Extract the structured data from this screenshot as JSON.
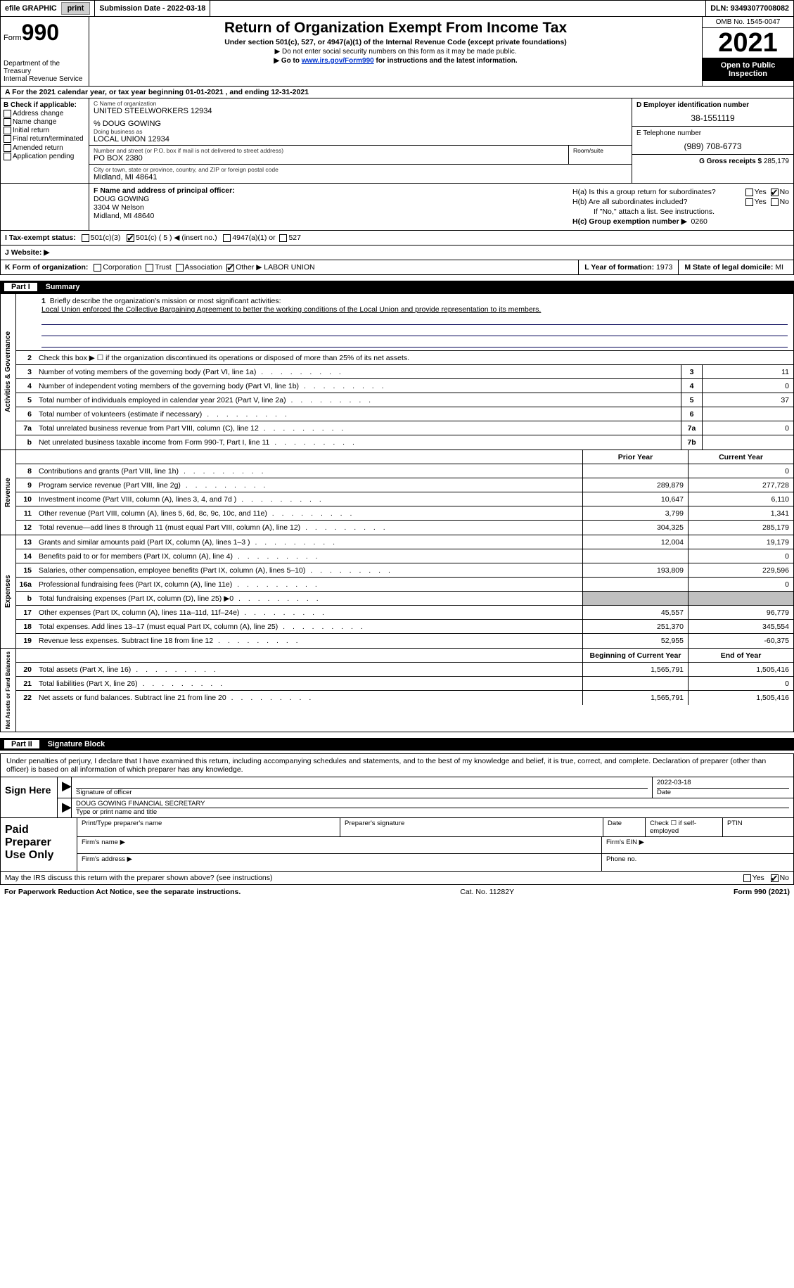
{
  "topbar": {
    "efile_label": "efile GRAPHIC",
    "print_btn": "print",
    "submission_label": "Submission Date - 2022-03-18",
    "dln_label": "DLN: 93493077008082"
  },
  "header": {
    "form_label": "Form",
    "form_number": "990",
    "dept": "Department of the Treasury",
    "irs": "Internal Revenue Service",
    "title": "Return of Organization Exempt From Income Tax",
    "sub1": "Under section 501(c), 527, or 4947(a)(1) of the Internal Revenue Code (except private foundations)",
    "sub2": "▶ Do not enter social security numbers on this form as it may be made public.",
    "sub3_prefix": "▶ Go to ",
    "sub3_link": "www.irs.gov/Form990",
    "sub3_suffix": " for instructions and the latest information.",
    "omb": "OMB No. 1545-0047",
    "year": "2021",
    "open": "Open to Public Inspection"
  },
  "row_a": "A  For the 2021 calendar year, or tax year beginning 01-01-2021    , and ending 12-31-2021",
  "col_b": {
    "title": "B Check if applicable:",
    "opts": [
      "Address change",
      "Name change",
      "Initial return",
      "Final return/terminated",
      "Amended return",
      "Application pending"
    ]
  },
  "col_c": {
    "name_lbl": "C Name of organization",
    "name_val": "UNITED STEELWORKERS 12934",
    "care_lbl": "% DOUG GOWING",
    "dba_lbl": "Doing business as",
    "dba_val": "LOCAL UNION 12934",
    "street_lbl": "Number and street (or P.O. box if mail is not delivered to street address)",
    "street_val": "PO BOX 2380",
    "room_lbl": "Room/suite",
    "city_lbl": "City or town, state or province, country, and ZIP or foreign postal code",
    "city_val": "Midland, MI  48641"
  },
  "col_d": {
    "ein_lbl": "D Employer identification number",
    "ein_val": "38-1551119",
    "tel_lbl": "E Telephone number",
    "tel_val": "(989) 708-6773",
    "gross_lbl": "G Gross receipts $",
    "gross_val": "285,179"
  },
  "fgh": {
    "f_lbl": "F Name and address of principal officer:",
    "f_name": "DOUG GOWING",
    "f_addr1": "3304 W Nelson",
    "f_addr2": "Midland, MI  48640",
    "ha_lbl": "H(a)  Is this a group return for subordinates?",
    "hb_lbl": "H(b)  Are all subordinates included?",
    "hb_note": "If \"No,\" attach a list. See instructions.",
    "hc_lbl": "H(c)  Group exemption number ▶",
    "hc_val": "0260",
    "yes": "Yes",
    "no": "No"
  },
  "row_i": {
    "lbl": "I   Tax-exempt status:",
    "opts": [
      "501(c)(3)",
      "501(c) ( 5 ) ◀ (insert no.)",
      "4947(a)(1) or",
      "527"
    ]
  },
  "row_j": {
    "lbl": "J   Website: ▶",
    "val": ""
  },
  "row_k": {
    "lbl": "K Form of organization:",
    "opts": [
      "Corporation",
      "Trust",
      "Association",
      "Other ▶"
    ],
    "other_val": "LABOR UNION",
    "l_lbl": "L Year of formation:",
    "l_val": "1973",
    "m_lbl": "M State of legal domicile:",
    "m_val": "MI"
  },
  "part1": {
    "num": "Part I",
    "title": "Summary"
  },
  "summary": {
    "q1_lbl": "Briefly describe the organization's mission or most significant activities:",
    "q1_val": "Local Union enforced the Collective Bargaining Agreement to better the working conditions of the Local Union and provide representation to its members.",
    "q2": "Check this box ▶ ☐  if the organization discontinued its operations or disposed of more than 25% of its net assets.",
    "lines": [
      {
        "n": "3",
        "d": "Number of voting members of the governing body (Part VI, line 1a)",
        "bn": "3",
        "bv": "11"
      },
      {
        "n": "4",
        "d": "Number of independent voting members of the governing body (Part VI, line 1b)",
        "bn": "4",
        "bv": "0"
      },
      {
        "n": "5",
        "d": "Total number of individuals employed in calendar year 2021 (Part V, line 2a)",
        "bn": "5",
        "bv": "37"
      },
      {
        "n": "6",
        "d": "Total number of volunteers (estimate if necessary)",
        "bn": "6",
        "bv": ""
      },
      {
        "n": "7a",
        "d": "Total unrelated business revenue from Part VIII, column (C), line 12",
        "bn": "7a",
        "bv": "0"
      },
      {
        "n": "b",
        "d": "Net unrelated business taxable income from Form 990-T, Part I, line 11",
        "bn": "7b",
        "bv": ""
      }
    ],
    "prior_head": "Prior Year",
    "curr_head": "Current Year",
    "rev": [
      {
        "n": "8",
        "d": "Contributions and grants (Part VIII, line 1h)",
        "p": "",
        "c": "0"
      },
      {
        "n": "9",
        "d": "Program service revenue (Part VIII, line 2g)",
        "p": "289,879",
        "c": "277,728"
      },
      {
        "n": "10",
        "d": "Investment income (Part VIII, column (A), lines 3, 4, and 7d )",
        "p": "10,647",
        "c": "6,110"
      },
      {
        "n": "11",
        "d": "Other revenue (Part VIII, column (A), lines 5, 6d, 8c, 9c, 10c, and 11e)",
        "p": "3,799",
        "c": "1,341"
      },
      {
        "n": "12",
        "d": "Total revenue—add lines 8 through 11 (must equal Part VIII, column (A), line 12)",
        "p": "304,325",
        "c": "285,179"
      }
    ],
    "exp": [
      {
        "n": "13",
        "d": "Grants and similar amounts paid (Part IX, column (A), lines 1–3 )",
        "p": "12,004",
        "c": "19,179"
      },
      {
        "n": "14",
        "d": "Benefits paid to or for members (Part IX, column (A), line 4)",
        "p": "",
        "c": "0"
      },
      {
        "n": "15",
        "d": "Salaries, other compensation, employee benefits (Part IX, column (A), lines 5–10)",
        "p": "193,809",
        "c": "229,596"
      },
      {
        "n": "16a",
        "d": "Professional fundraising fees (Part IX, column (A), line 11e)",
        "p": "",
        "c": "0"
      },
      {
        "n": "b",
        "d": "Total fundraising expenses (Part IX, column (D), line 25) ▶0",
        "p": "SHADE",
        "c": "SHADE"
      },
      {
        "n": "17",
        "d": "Other expenses (Part IX, column (A), lines 11a–11d, 11f–24e)",
        "p": "45,557",
        "c": "96,779"
      },
      {
        "n": "18",
        "d": "Total expenses. Add lines 13–17 (must equal Part IX, column (A), line 25)",
        "p": "251,370",
        "c": "345,554"
      },
      {
        "n": "19",
        "d": "Revenue less expenses. Subtract line 18 from line 12",
        "p": "52,955",
        "c": "-60,375"
      }
    ],
    "na_head_p": "Beginning of Current Year",
    "na_head_c": "End of Year",
    "na": [
      {
        "n": "20",
        "d": "Total assets (Part X, line 16)",
        "p": "1,565,791",
        "c": "1,505,416"
      },
      {
        "n": "21",
        "d": "Total liabilities (Part X, line 26)",
        "p": "",
        "c": "0"
      },
      {
        "n": "22",
        "d": "Net assets or fund balances. Subtract line 21 from line 20",
        "p": "1,565,791",
        "c": "1,505,416"
      }
    ],
    "vlabels": {
      "gov": "Activities & Governance",
      "rev": "Revenue",
      "exp": "Expenses",
      "na": "Net Assets or Fund Balances"
    }
  },
  "part2": {
    "num": "Part II",
    "title": "Signature Block"
  },
  "sig": {
    "declaration": "Under penalties of perjury, I declare that I have examined this return, including accompanying schedules and statements, and to the best of my knowledge and belief, it is true, correct, and complete. Declaration of preparer (other than officer) is based on all information of which preparer has any knowledge.",
    "sign_here": "Sign Here",
    "sig_officer_lbl": "Signature of officer",
    "sig_date": "2022-03-18",
    "date_lbl": "Date",
    "name_title": "DOUG GOWING  FINANCIAL SECRETARY",
    "name_title_lbl": "Type or print name and title",
    "paid_lbl": "Paid Preparer Use Only",
    "prep_name_lbl": "Print/Type preparer's name",
    "prep_sig_lbl": "Preparer's signature",
    "prep_date_lbl": "Date",
    "self_emp_lbl": "Check ☐ if self-employed",
    "ptin_lbl": "PTIN",
    "firm_name_lbl": "Firm's name   ▶",
    "firm_ein_lbl": "Firm's EIN ▶",
    "firm_addr_lbl": "Firm's address ▶",
    "phone_lbl": "Phone no."
  },
  "footer": {
    "discuss": "May the IRS discuss this return with the preparer shown above? (see instructions)",
    "yes": "Yes",
    "no": "No",
    "pra": "For Paperwork Reduction Act Notice, see the separate instructions.",
    "cat": "Cat. No. 11282Y",
    "form": "Form 990 (2021)"
  }
}
